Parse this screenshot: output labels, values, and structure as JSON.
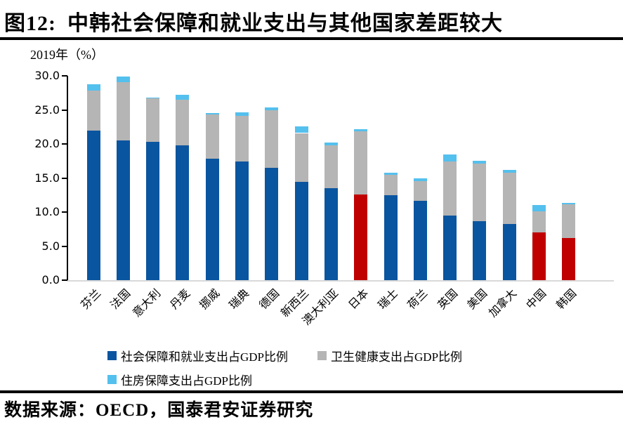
{
  "header": {
    "figure_label": "图12:",
    "title": "中韩社会保障和就业支出与其他国家差距较大"
  },
  "source": {
    "text": "数据来源：OECD，国泰君安证券研究"
  },
  "chart_data": {
    "type": "bar",
    "stacked": true,
    "axis_note": "2019年（%）",
    "categories": [
      "芬兰",
      "法国",
      "意大利",
      "丹麦",
      "挪威",
      "瑞典",
      "德国",
      "新西兰",
      "澳大利亚",
      "日本",
      "瑞士",
      "荷兰",
      "英国",
      "美国",
      "加拿大",
      "中国",
      "韩国"
    ],
    "series": [
      {
        "name": "社会保障和就业支出占GDP比例",
        "color": "#0a55a0",
        "values": [
          22.0,
          20.5,
          20.3,
          19.8,
          17.8,
          17.4,
          16.5,
          14.4,
          13.5,
          12.6,
          12.5,
          11.7,
          9.5,
          8.7,
          8.2,
          7.0,
          6.2
        ]
      },
      {
        "name": "卫生健康支出占GDP比例",
        "color": "#b5b5b5",
        "values": [
          5.8,
          8.6,
          6.4,
          6.7,
          6.5,
          6.7,
          8.4,
          7.2,
          6.3,
          9.3,
          3.0,
          2.8,
          7.9,
          8.4,
          7.6,
          3.1,
          4.9
        ]
      },
      {
        "name": "住房保障支出占GDP比例",
        "color": "#54c0ee",
        "values": [
          1.0,
          0.8,
          0.1,
          0.7,
          0.2,
          0.5,
          0.5,
          1.0,
          0.4,
          0.3,
          0.3,
          0.5,
          1.1,
          0.4,
          0.4,
          0.9,
          0.2
        ]
      }
    ],
    "highlight": {
      "countries": [
        "日本",
        "中国",
        "韩国"
      ],
      "color": "#c00000",
      "applies_to_series": 0
    },
    "ylim": [
      0,
      30
    ],
    "yticks": [
      0,
      5,
      10,
      15,
      20,
      25,
      30
    ],
    "ytick_format": "one_decimal",
    "grid": "off",
    "legend_position": "bottom",
    "baseline_color": "#d9d9d9",
    "axis_color": "#000000"
  }
}
